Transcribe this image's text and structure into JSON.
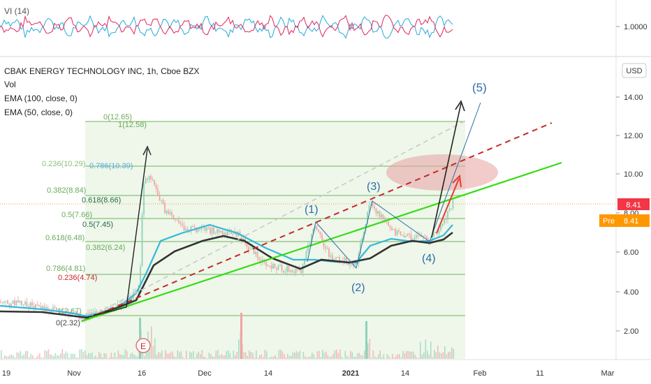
{
  "indicator_pane": {
    "title": "VI (14)",
    "value_label": "1.0000"
  },
  "legend": {
    "symbol_title": "CBAK ENERGY TECHNOLOGY INC, 1h, Cboe BZX",
    "vol": "Vol",
    "ema100": "EMA (100, close, 0)",
    "ema50": "EMA (50, close, 0)"
  },
  "currency_button": "USD",
  "price_axis": [
    "14.00",
    "12.00",
    "10.00",
    "8.00",
    "6.00",
    "4.00",
    "2.00"
  ],
  "price_badge": "8.41",
  "pre_badge": {
    "label": "Pre",
    "value": "8.41"
  },
  "time_axis": [
    "19",
    "Nov",
    "16",
    "Dec",
    "14",
    "2021",
    "14",
    "Feb",
    "11",
    "Mar"
  ],
  "fib_labels": {
    "f0": "0(12.65)",
    "f1": "1(12.58)",
    "f0236": "0.236(10.29)",
    "f0786": "0.786(10.39)",
    "f0382": "0.382(8.84)",
    "f0618": "0.618(8.66)",
    "f05": "0.5(7.66)",
    "f05b": "0.5(7.45)",
    "f0618b": "0.618(6.48)",
    "f0382b": "0.382(6.24)",
    "f0786b": "0.786(4.81)",
    "f0236b": "0.236(4.74)",
    "f1b": "1(2.67)",
    "f0b": "0(2.32)"
  },
  "wave_labels": {
    "w1": "(1)",
    "w2": "(2)",
    "w3": "(3)",
    "w4": "(4)",
    "w5": "(5)"
  },
  "earnings_marker": "E",
  "colors": {
    "vi_plus": "#2aa8d8",
    "vi_minus": "#e0245e",
    "fib_green": "#6aaa5a",
    "fib_zone": "#eef7ea",
    "trend_green": "#33dd11",
    "trend_red": "#c62828",
    "wave_blue": "#2e6ca8",
    "ema50": "#333333",
    "ema100": "#35b8d8",
    "price_badge": "#f23645",
    "pre_badge": "#ff9800"
  }
}
